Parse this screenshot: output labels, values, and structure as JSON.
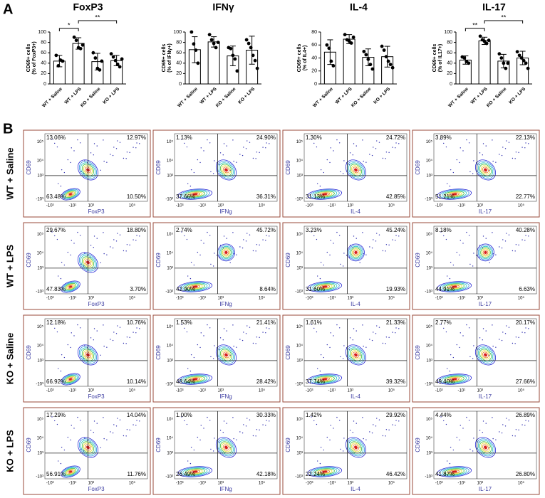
{
  "panel_labels": [
    "A",
    "B"
  ],
  "chart_data": [
    {
      "type": "bar",
      "title": "FoxP3",
      "y_label": [
        "CD69+ cells",
        "(% of FoxP3+)"
      ],
      "categories": [
        "WT + Saline",
        "WT + LPS",
        "KO + Saline",
        "KO + LPS"
      ],
      "values": [
        44,
        78,
        43,
        45
      ],
      "errors": [
        11,
        11,
        16,
        10
      ],
      "points": [
        [
          55,
          35,
          46,
          44
        ],
        [
          90,
          84,
          70,
          68,
          75
        ],
        [
          60,
          50,
          30,
          27,
          44
        ],
        [
          58,
          52,
          45,
          38,
          33,
          48
        ]
      ],
      "ylim": [
        0,
        100
      ],
      "yticks": [
        0,
        20,
        40,
        60,
        80,
        100
      ],
      "significance": [
        {
          "pair": [
            "WT + Saline",
            "WT + LPS"
          ],
          "label": "*"
        },
        {
          "pair": [
            "WT + LPS",
            "KO + LPS"
          ],
          "label": "**"
        }
      ]
    },
    {
      "type": "bar",
      "title": "IFNγ",
      "y_label": [
        "CD69+ cells",
        "(% of IFNγ+)"
      ],
      "categories": [
        "WT + Saline",
        "WT + LPS",
        "KO + Saline",
        "KO + LPS"
      ],
      "values": [
        66,
        81,
        54,
        65
      ],
      "errors": [
        25,
        10,
        19,
        27
      ],
      "points": [
        [
          100,
          77,
          65,
          40
        ],
        [
          95,
          85,
          78,
          70,
          80
        ],
        [
          70,
          68,
          55,
          48,
          25
        ],
        [
          85,
          78,
          70,
          55,
          45,
          30
        ]
      ],
      "ylim": [
        0,
        100
      ],
      "yticks": [
        0,
        20,
        40,
        60,
        80,
        100
      ],
      "significance": []
    },
    {
      "type": "bar",
      "title": "IL-4",
      "y_label": [
        "CD69+ cells",
        "(% of IL4+)"
      ],
      "categories": [
        "WT + Saline",
        "WT + LPS",
        "KO + Saline",
        "KO + LPS"
      ],
      "values": [
        49,
        69,
        41,
        42
      ],
      "errors": [
        19,
        7,
        13,
        16
      ],
      "points": [
        [
          60,
          55,
          35,
          28
        ],
        [
          76,
          68,
          66,
          63,
          72
        ],
        [
          50,
          45,
          38,
          30,
          23
        ],
        [
          58,
          52,
          42,
          35,
          30,
          25
        ]
      ],
      "ylim": [
        0,
        80
      ],
      "yticks": [
        0,
        20,
        40,
        60,
        80
      ],
      "significance": []
    },
    {
      "type": "bar",
      "title": "IL-17",
      "y_label": [
        "CD69+ cells",
        "(% of IL17+)"
      ],
      "categories": [
        "WT + Saline",
        "WT + LPS",
        "KO + Saline",
        "KO + LPS"
      ],
      "values": [
        46,
        83,
        44,
        50
      ],
      "errors": [
        8,
        7,
        13,
        13
      ],
      "points": [
        [
          52,
          50,
          43,
          40
        ],
        [
          92,
          85,
          82,
          78,
          84
        ],
        [
          58,
          50,
          40,
          30,
          40
        ],
        [
          62,
          55,
          50,
          45,
          40,
          30
        ]
      ],
      "ylim": [
        0,
        100
      ],
      "yticks": [
        0,
        20,
        40,
        60,
        80,
        100
      ],
      "significance": [
        {
          "pair": [
            "WT + Saline",
            "WT + LPS"
          ],
          "label": "**"
        },
        {
          "pair": [
            "WT + LPS",
            "KO + LPS"
          ],
          "label": "**"
        }
      ]
    }
  ],
  "flow": {
    "y_label": "CD69",
    "columns": [
      "FoxP3",
      "IFNg",
      "IL-4",
      "IL-17"
    ],
    "x_ticks": [
      "-10³",
      "-10¹",
      "10³",
      "10⁵"
    ],
    "y_ticks": [
      "-10³",
      "10³",
      "10⁴",
      "10⁵"
    ],
    "rows": [
      {
        "label": "WT + Saline",
        "quadrants": [
          [
            "13.06%",
            "12.97%",
            "63.48%",
            "10.50%"
          ],
          [
            "1.13%",
            "24.90%",
            "37.66%",
            "36.31%"
          ],
          [
            "1.30%",
            "24.72%",
            "31.13%",
            "42.85%"
          ],
          [
            "3.89%",
            "22.13%",
            "51.21%",
            "22.77%"
          ]
        ]
      },
      {
        "label": "WT + LPS",
        "quadrants": [
          [
            "29.67%",
            "18.80%",
            "47.83%",
            "3.70%"
          ],
          [
            "2.74%",
            "45.72%",
            "42.90%",
            "8.64%"
          ],
          [
            "3.23%",
            "45.24%",
            "31.60%",
            "19.93%"
          ],
          [
            "8.18%",
            "40.28%",
            "44.91%",
            "6.63%"
          ]
        ]
      },
      {
        "label": "KO + Saline",
        "quadrants": [
          [
            "12.18%",
            "10.76%",
            "66.92%",
            "10.14%"
          ],
          [
            "1.53%",
            "21.41%",
            "48.64%",
            "28.42%"
          ],
          [
            "1.61%",
            "21.33%",
            "37.74%",
            "39.32%"
          ],
          [
            "2.77%",
            "20.17%",
            "49.40%",
            "27.66%"
          ]
        ]
      },
      {
        "label": "KO + LPS",
        "quadrants": [
          [
            "17.29%",
            "14.04%",
            "56.91%",
            "11.76%"
          ],
          [
            "1.00%",
            "30.33%",
            "26.49%",
            "42.18%"
          ],
          [
            "1.42%",
            "29.92%",
            "22.24%",
            "46.42%"
          ],
          [
            "4.44%",
            "26.89%",
            "41.87%",
            "26.80%"
          ]
        ]
      }
    ]
  }
}
